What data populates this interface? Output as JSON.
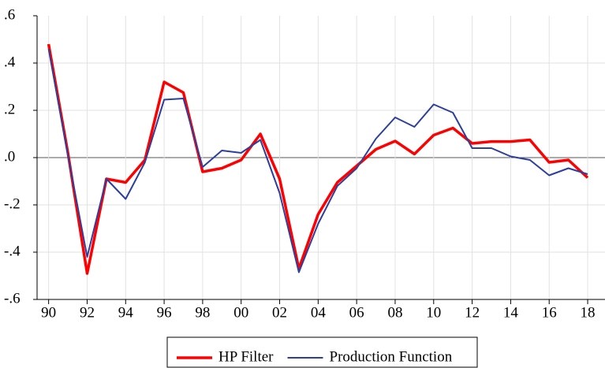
{
  "chart_data": {
    "type": "line",
    "x": [
      1990,
      1991,
      1992,
      1993,
      1994,
      1995,
      1996,
      1997,
      1998,
      1999,
      2000,
      2001,
      2002,
      2003,
      2004,
      2005,
      2006,
      2007,
      2008,
      2009,
      2010,
      2011,
      2012,
      2013,
      2014,
      2015,
      2016,
      2017,
      2018
    ],
    "series": [
      {
        "name": "HP Filter",
        "color": "#ff0000",
        "values": [
          0.48,
          0.02,
          -0.49,
          -0.09,
          -0.105,
          -0.01,
          0.32,
          0.275,
          -0.06,
          -0.045,
          -0.01,
          0.1,
          -0.09,
          -0.47,
          -0.24,
          -0.105,
          -0.035,
          0.035,
          0.07,
          0.015,
          0.095,
          0.125,
          0.06,
          0.068,
          0.068,
          0.075,
          -0.02,
          -0.01,
          -0.085
        ]
      },
      {
        "name": "Production Function",
        "color": "#2c3e9e",
        "values": [
          0.46,
          0.01,
          -0.42,
          -0.09,
          -0.175,
          -0.02,
          0.245,
          0.25,
          -0.04,
          0.03,
          0.02,
          0.075,
          -0.15,
          -0.485,
          -0.28,
          -0.12,
          -0.045,
          0.08,
          0.17,
          0.13,
          0.225,
          0.19,
          0.04,
          0.04,
          0.005,
          -0.01,
          -0.075,
          -0.045,
          -0.07
        ]
      }
    ],
    "xlim": [
      1989.4,
      2018.9
    ],
    "ylim": [
      -0.6,
      0.6
    ],
    "xticks": [
      {
        "value": 1990,
        "label": "90"
      },
      {
        "value": 1992,
        "label": "92"
      },
      {
        "value": 1994,
        "label": "94"
      },
      {
        "value": 1996,
        "label": "96"
      },
      {
        "value": 1998,
        "label": "98"
      },
      {
        "value": 2000,
        "label": "00"
      },
      {
        "value": 2002,
        "label": "02"
      },
      {
        "value": 2004,
        "label": "04"
      },
      {
        "value": 2006,
        "label": "06"
      },
      {
        "value": 2008,
        "label": "08"
      },
      {
        "value": 2010,
        "label": "10"
      },
      {
        "value": 2012,
        "label": "12"
      },
      {
        "value": 2014,
        "label": "14"
      },
      {
        "value": 2016,
        "label": "16"
      },
      {
        "value": 2018,
        "label": "18"
      }
    ],
    "yticks": [
      {
        "value": 0.6,
        "label": ".6"
      },
      {
        "value": 0.4,
        "label": ".4"
      },
      {
        "value": 0.2,
        "label": ".2"
      },
      {
        "value": 0,
        "label": ".0"
      },
      {
        "value": -0.2,
        "label": "-.2"
      },
      {
        "value": -0.4,
        "label": "-.4"
      },
      {
        "value": -0.6,
        "label": "-.6"
      }
    ],
    "grid": true,
    "legend": "bottom"
  }
}
